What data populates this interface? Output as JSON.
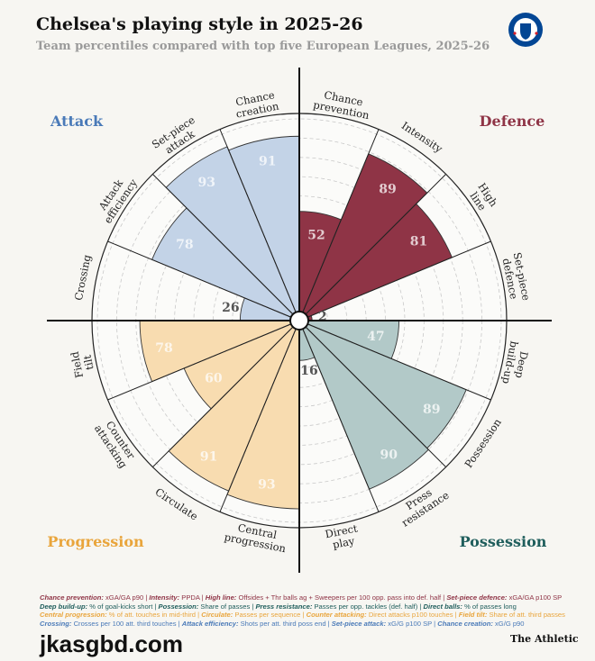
{
  "title": "Chelsea's playing style in 2025-26",
  "subtitle": "Team percentiles compared with top five European Leagues, 2025-26",
  "logo": {
    "text": "CHELSEA",
    "colors": [
      "#034694",
      "#ffffff",
      "#d5202a"
    ]
  },
  "chart_data": {
    "type": "polar-bar",
    "rlim": [
      0,
      100
    ],
    "grid": true,
    "groups": [
      {
        "name": "Attack",
        "color": "#c3d3e7",
        "label_color": "#4a7ab8"
      },
      {
        "name": "Defence",
        "color": "#8f3446",
        "label_color": "#8f3446"
      },
      {
        "name": "Possession",
        "color": "#b2c9c8",
        "label_color": "#1f5e5c"
      },
      {
        "name": "Progression",
        "color": "#f8dcb0",
        "label_color": "#e9a53c"
      }
    ],
    "categories": [
      {
        "label": [
          "Chance",
          "prevention"
        ],
        "value": 52,
        "group": "Defence"
      },
      {
        "label": [
          "Intensity"
        ],
        "value": 89,
        "group": "Defence"
      },
      {
        "label": [
          "High",
          "line"
        ],
        "value": 81,
        "group": "Defence"
      },
      {
        "label": [
          "Set-piece",
          "defence"
        ],
        "value": 2,
        "group": "Defence"
      },
      {
        "label": [
          "Deep",
          "build-up"
        ],
        "value": 47,
        "group": "Possession"
      },
      {
        "label": [
          "Possession"
        ],
        "value": 89,
        "group": "Possession"
      },
      {
        "label": [
          "Press",
          "resistance"
        ],
        "value": 90,
        "group": "Possession"
      },
      {
        "label": [
          "Direct",
          "play"
        ],
        "value": 16,
        "group": "Possession"
      },
      {
        "label": [
          "Central",
          "progression"
        ],
        "value": 93,
        "group": "Progression"
      },
      {
        "label": [
          "Circulate"
        ],
        "value": 91,
        "group": "Progression"
      },
      {
        "label": [
          "Counter",
          "attacking"
        ],
        "value": 60,
        "group": "Progression"
      },
      {
        "label": [
          "Field",
          "tilt"
        ],
        "value": 78,
        "group": "Progression"
      },
      {
        "label": [
          "Crossing"
        ],
        "value": 26,
        "group": "Attack"
      },
      {
        "label": [
          "Attack",
          "efficiency"
        ],
        "value": 78,
        "group": "Attack"
      },
      {
        "label": [
          "Set-piece",
          "attack"
        ],
        "value": 93,
        "group": "Attack"
      },
      {
        "label": [
          "Chance",
          "creation"
        ],
        "value": 91,
        "group": "Attack"
      }
    ]
  },
  "footer": [
    [
      [
        "Chance prevention:",
        " xGA/GA p90 | "
      ],
      [
        "Intensity:",
        " PPDA | "
      ],
      [
        "High line:",
        " Offsides + Thr balls ag + Sweepers per 100 opp. pass into def. half | "
      ],
      [
        "Set-piece defence:",
        " xGA/GA p100 SP"
      ]
    ],
    [
      [
        "Deep build-up:",
        " % of goal-kicks short | "
      ],
      [
        "Possession:",
        " Share of passes | "
      ],
      [
        "Press resistance:",
        " Passes per opp. tackles (def. half) | "
      ],
      [
        "Direct balls:",
        " % of passes long"
      ]
    ],
    [
      [
        "Central progression:",
        " % of att. touches in mid-third | "
      ],
      [
        "Circulate:",
        " Passes per sequence | "
      ],
      [
        "Counter attacking:",
        " Direct attacks p100 touches | "
      ],
      [
        "Field tilt:",
        " Share of att. third passes"
      ]
    ],
    [
      [
        "Crossing:",
        " Crosses per 100 att. third touches | "
      ],
      [
        "Attack efficiency:",
        " Shots per att. third poss end | "
      ],
      [
        "Set-piece attack:",
        " xG/G p100 SP | "
      ],
      [
        "Chance creation:",
        " xG/G p90"
      ]
    ]
  ],
  "brand": "The Athletic",
  "watermark": "jkasgbd.com"
}
